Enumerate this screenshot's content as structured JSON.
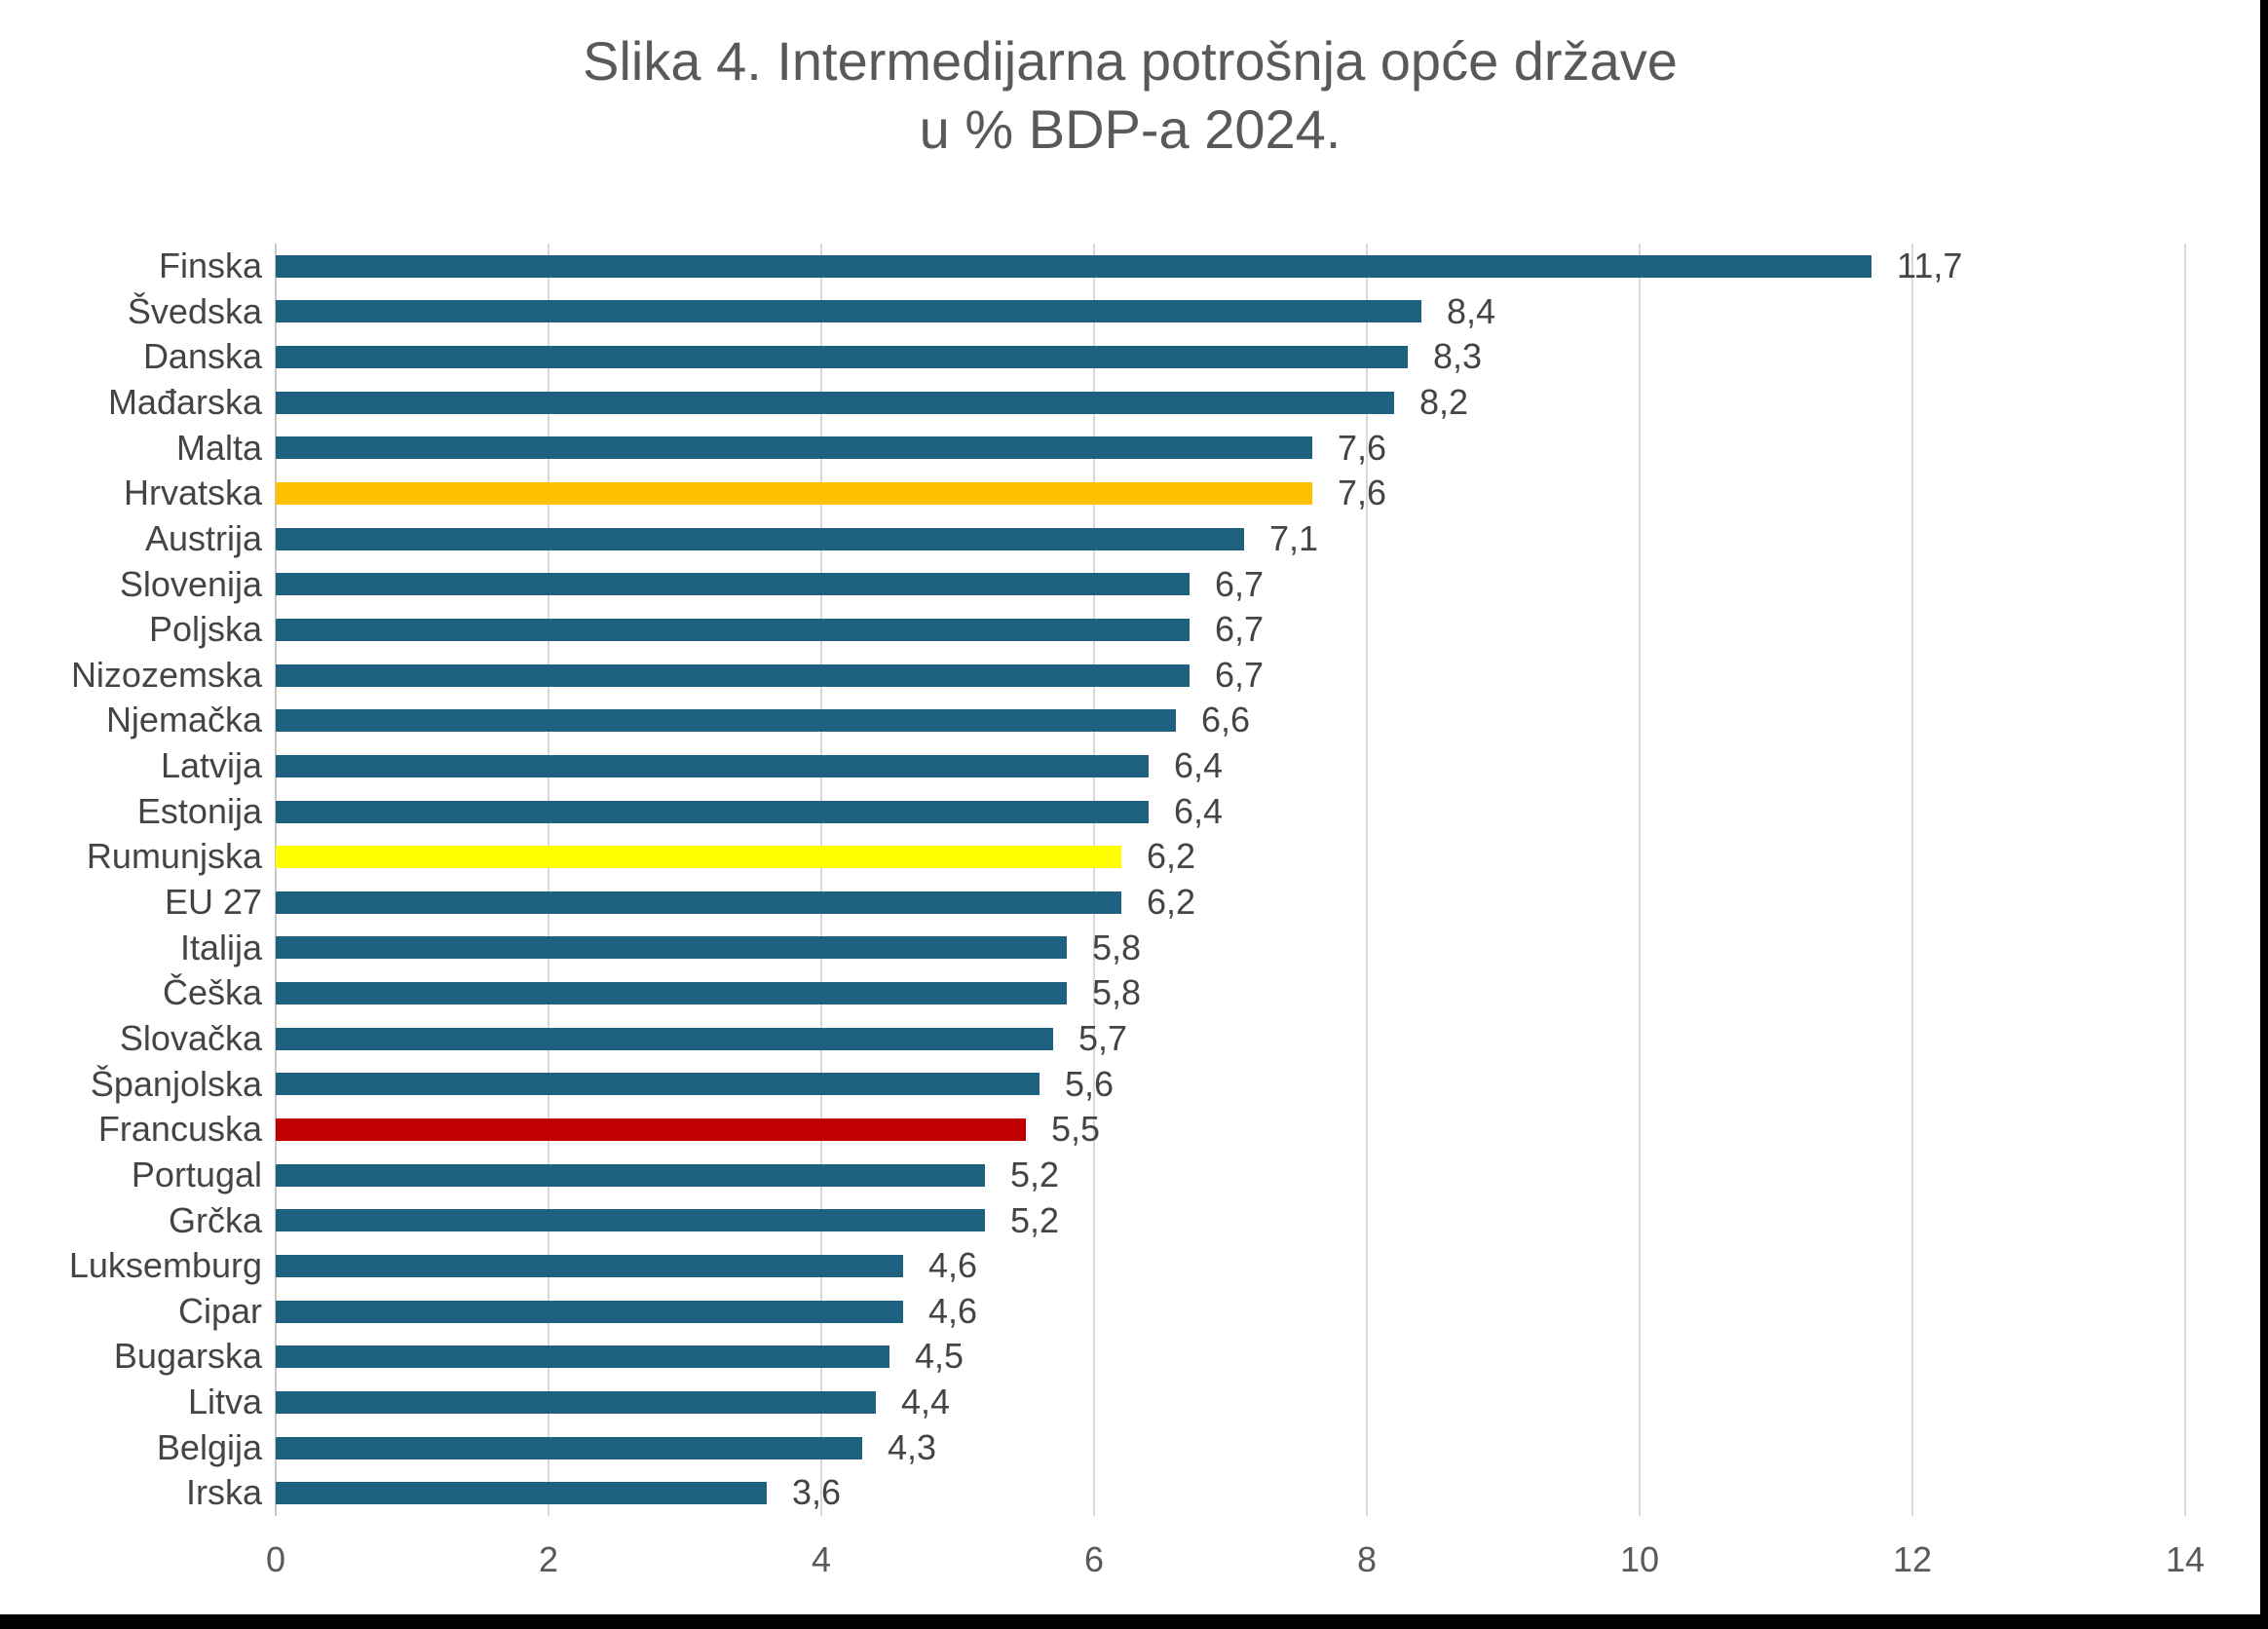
{
  "title": {
    "line1": "Slika 4. Intermedijarna potrošnja opće države",
    "line2": "u % BDP-a 2024."
  },
  "colors": {
    "bar_default": "#1E6080",
    "highlight_hrvatska": "#FFC000",
    "highlight_rumunjska": "#FFFF00",
    "highlight_francuska": "#C00000",
    "gridline": "#D9D9D9",
    "axis_line": "#C8C6C6",
    "title_text": "#595959",
    "label_text": "#444444",
    "tick_text": "#595959"
  },
  "chart_data": {
    "type": "bar",
    "orientation": "horizontal",
    "title": "Slika 4. Intermedijarna potrošnja opće države u % BDP-a 2024.",
    "xlabel": "",
    "ylabel": "",
    "xlim": [
      0,
      14
    ],
    "x_ticks": [
      0,
      2,
      4,
      6,
      8,
      10,
      12,
      14
    ],
    "grid": "vertical",
    "legend": false,
    "decimal_separator": ",",
    "categories": [
      "Finska",
      "Švedska",
      "Danska",
      "Mađarska",
      "Malta",
      "Hrvatska",
      "Austrija",
      "Slovenija",
      "Poljska",
      "Nizozemska",
      "Njemačka",
      "Latvija",
      "Estonija",
      "Rumunjska",
      "EU 27",
      "Italija",
      "Češka",
      "Slovačka",
      "Španjolska",
      "Francuska",
      "Portugal",
      "Grčka",
      "Luksemburg",
      "Cipar",
      "Bugarska",
      "Litva",
      "Belgija",
      "Irska"
    ],
    "values": [
      11.7,
      8.4,
      8.3,
      8.2,
      7.6,
      7.6,
      7.1,
      6.7,
      6.7,
      6.7,
      6.6,
      6.4,
      6.4,
      6.2,
      6.2,
      5.8,
      5.8,
      5.7,
      5.6,
      5.5,
      5.2,
      5.2,
      4.6,
      4.6,
      4.5,
      4.4,
      4.3,
      3.6
    ],
    "value_labels": [
      "11,7",
      "8,4",
      "8,3",
      "8,2",
      "7,6",
      "7,6",
      "7,1",
      "6,7",
      "6,7",
      "6,7",
      "6,6",
      "6,4",
      "6,4",
      "6,2",
      "6,2",
      "5,8",
      "5,8",
      "5,7",
      "5,6",
      "5,5",
      "5,2",
      "5,2",
      "4,6",
      "4,6",
      "4,5",
      "4,4",
      "4,3",
      "3,6"
    ],
    "bar_colors": [
      "#1E6080",
      "#1E6080",
      "#1E6080",
      "#1E6080",
      "#1E6080",
      "#FFC000",
      "#1E6080",
      "#1E6080",
      "#1E6080",
      "#1E6080",
      "#1E6080",
      "#1E6080",
      "#1E6080",
      "#FFFF00",
      "#1E6080",
      "#1E6080",
      "#1E6080",
      "#1E6080",
      "#1E6080",
      "#C00000",
      "#1E6080",
      "#1E6080",
      "#1E6080",
      "#1E6080",
      "#1E6080",
      "#1E6080",
      "#1E6080",
      "#1E6080"
    ]
  }
}
